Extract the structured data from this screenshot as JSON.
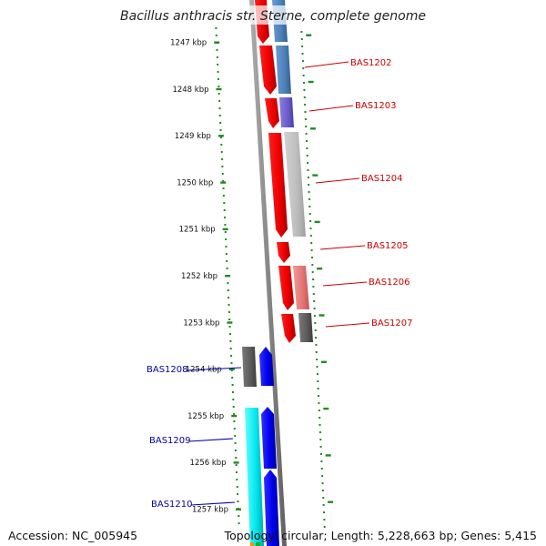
{
  "title": "Bacillus anthracis str. Sterne, complete genome",
  "footer": {
    "accession": "Accession: NC_005945",
    "stats": "Topology: circular; Length: 5,228,663 bp; Genes: 5,415"
  },
  "ruler": {
    "ticks": [
      {
        "label": "1247 kbp",
        "kbp": 1247
      },
      {
        "label": "1248 kbp",
        "kbp": 1248
      },
      {
        "label": "1249 kbp",
        "kbp": 1249
      },
      {
        "label": "1250 kbp",
        "kbp": 1250
      },
      {
        "label": "1251 kbp",
        "kbp": 1251
      },
      {
        "label": "1252 kbp",
        "kbp": 1252
      },
      {
        "label": "1253 kbp",
        "kbp": 1253
      },
      {
        "label": "1254 kbp",
        "kbp": 1254
      },
      {
        "label": "1255 kbp",
        "kbp": 1255
      },
      {
        "label": "1256 kbp",
        "kbp": 1256
      },
      {
        "label": "1257 kbp",
        "kbp": 1257
      }
    ]
  },
  "genes": [
    {
      "label": "BAS1202",
      "strand": "forward",
      "color": "#cc0000"
    },
    {
      "label": "BAS1203",
      "strand": "forward",
      "color": "#cc0000"
    },
    {
      "label": "BAS1204",
      "strand": "forward",
      "color": "#cc0000"
    },
    {
      "label": "BAS1205",
      "strand": "forward",
      "color": "#cc0000"
    },
    {
      "label": "BAS1206",
      "strand": "forward",
      "color": "#cc0000"
    },
    {
      "label": "BAS1207",
      "strand": "forward",
      "color": "#cc0000"
    },
    {
      "label": "BAS1208",
      "strand": "reverse",
      "color": "#0000aa"
    },
    {
      "label": "BAS1209",
      "strand": "reverse",
      "color": "#0000aa"
    },
    {
      "label": "BAS1210",
      "strand": "reverse",
      "color": "#0000aa"
    }
  ],
  "colors": {
    "forward_cds": "#ff0000",
    "reverse_cds": "#0000ee",
    "backbone": "#888888",
    "ruler_dots": "#228b22"
  }
}
